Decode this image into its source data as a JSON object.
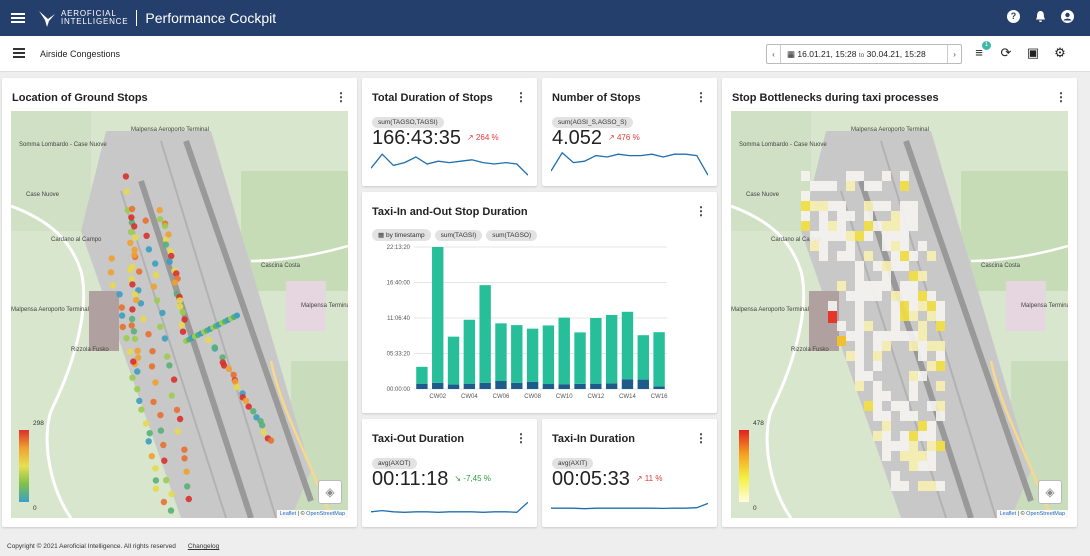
{
  "header": {
    "logo_line1": "AEROFICIAL",
    "logo_line2": "INTELLIGENCE",
    "title": "Performance Cockpit"
  },
  "subbar": {
    "breadcrumb": "Airside Congestions",
    "date_from": "16.01.21, 15:28",
    "date_to_word": "to",
    "date_to": "30.04.21, 15:28",
    "filter_badge": "1"
  },
  "cards": {
    "ground_stops": {
      "title": "Location of Ground Stops",
      "legend_max": "298",
      "legend_min": "0"
    },
    "total_duration": {
      "title": "Total Duration of Stops",
      "chip": "sum(TAGSO,TAGSI)",
      "value": "166:43:35",
      "delta": "264 %",
      "spark": [
        0.35,
        0.85,
        0.45,
        0.55,
        0.75,
        0.5,
        0.6,
        0.55,
        0.6,
        0.65,
        0.55,
        0.5,
        0.55,
        0.5,
        0.1
      ]
    },
    "number_stops": {
      "title": "Number of Stops",
      "chip": "sum(AGSI_S,AGSO_S)",
      "value": "4.052",
      "delta": "476 %",
      "spark": [
        0.25,
        0.9,
        0.55,
        0.6,
        0.8,
        0.75,
        0.85,
        0.8,
        0.8,
        0.85,
        0.75,
        0.85,
        0.85,
        0.8,
        0.1
      ]
    },
    "taxi_stop": {
      "title": "Taxi-In and-Out Stop Duration",
      "chips": [
        "by timestamp",
        "sum(TAGSI)",
        "sum(TAGSO)"
      ]
    },
    "taxi_out": {
      "title": "Taxi-Out Duration",
      "chip": "avg(AXOT)",
      "value": "00:11:18",
      "delta": "-7,45 %",
      "spark": [
        0.3,
        0.35,
        0.3,
        0.28,
        0.3,
        0.3,
        0.28,
        0.3,
        0.3,
        0.3,
        0.28,
        0.3,
        0.3,
        0.28,
        0.7
      ]
    },
    "taxi_in": {
      "title": "Taxi-In Duration",
      "chip": "avg(AXIT)",
      "value": "00:05:33",
      "delta": "11 %",
      "spark": [
        0.45,
        0.45,
        0.45,
        0.43,
        0.45,
        0.45,
        0.45,
        0.45,
        0.45,
        0.45,
        0.44,
        0.45,
        0.45,
        0.47,
        0.65
      ]
    },
    "bottlenecks": {
      "title": "Stop Bottlenecks during taxi processes",
      "legend_max": "478",
      "legend_min": "0"
    }
  },
  "map_labels": [
    "Malpensa Aeroporto Terminal",
    "Somma Lombardo - Case Nuove",
    "Case Nuove",
    "Cardano al Campo",
    "Cascina Costa",
    "Malpensa Terminal 1",
    "Malpensa Aeroporto Terminal",
    "Rizzola Fusko"
  ],
  "map_attribution": {
    "leaflet": "Leaflet",
    "sep": " | © ",
    "osm": "OpenStreetMap"
  },
  "chart_data": {
    "type": "bar",
    "categories": [
      "CW01",
      "CW02",
      "CW03",
      "CW04",
      "CW05",
      "CW06",
      "CW07",
      "CW08",
      "CW09",
      "CW10",
      "CW11",
      "CW12",
      "CW13",
      "CW14",
      "CW15",
      "CW16"
    ],
    "tick_labels": [
      "CW02",
      "CW04",
      "CW06",
      "CW08",
      "CW10",
      "CW12",
      "CW14",
      "CW16"
    ],
    "y_ticks": [
      "00:00:00",
      "05:33:20",
      "11:06:40",
      "16:40:00",
      "22:13:20"
    ],
    "ylim_seconds": [
      0,
      80000
    ],
    "series": [
      {
        "name": "sum(TAGSI)",
        "color": "#1f5b8a",
        "values": [
          3000,
          3500,
          2500,
          3000,
          3500,
          4500,
          3500,
          4000,
          2800,
          2700,
          2900,
          3000,
          3200,
          5500,
          5300,
          1500
        ]
      },
      {
        "name": "sum(TAGSO)",
        "color": "#26bf9a",
        "values": [
          9500,
          76500,
          27000,
          36000,
          55000,
          32500,
          32500,
          30000,
          33000,
          37500,
          29000,
          37000,
          38500,
          38000,
          25000,
          30500
        ]
      }
    ],
    "grid": true
  },
  "footer": {
    "copyright": "Copyright © 2021 Aeroficial Intelligence. All rights reserved",
    "changelog": "Changelog"
  }
}
